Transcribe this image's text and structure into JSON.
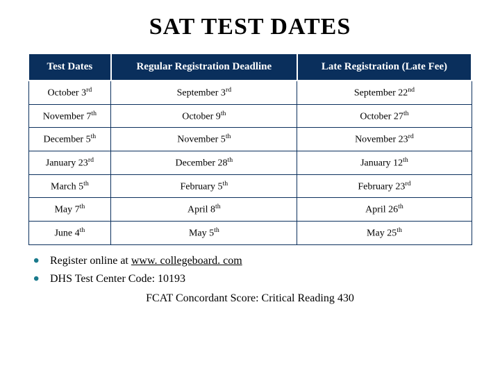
{
  "title": "SAT TEST DATES",
  "table": {
    "columns": [
      "Test Dates",
      "Regular Registration Deadline",
      "Late Registration (Late Fee)"
    ],
    "rows": [
      {
        "c0_text": "October 3",
        "c0_sup": "rd",
        "c1_text": "September 3",
        "c1_sup": "rd",
        "c2_text": "September 22",
        "c2_sup": "nd"
      },
      {
        "c0_text": "November 7",
        "c0_sup": "th",
        "c1_text": "October 9",
        "c1_sup": "th",
        "c2_text": "October 27",
        "c2_sup": "th"
      },
      {
        "c0_text": "December 5",
        "c0_sup": "th",
        "c1_text": "November 5",
        "c1_sup": "th",
        "c2_text": "November 23",
        "c2_sup": "rd"
      },
      {
        "c0_text": "January 23",
        "c0_sup": "rd",
        "c1_text": "December 28",
        "c1_sup": "th",
        "c2_text": "January 12",
        "c2_sup": "th"
      },
      {
        "c0_text": "March 5",
        "c0_sup": "th",
        "c1_text": "February 5",
        "c1_sup": "th",
        "c2_text": "February 23",
        "c2_sup": "rd"
      },
      {
        "c0_text": "May 7",
        "c0_sup": "th",
        "c1_text": "April 8",
        "c1_sup": "th",
        "c2_text": "April 26",
        "c2_sup": "th"
      },
      {
        "c0_text": "June 4",
        "c0_sup": "th",
        "c1_text": "May 5",
        "c1_sup": "th",
        "c2_text": "May 25",
        "c2_sup": "th"
      }
    ],
    "header_bg": "#0a2f5c",
    "header_color": "#ffffff",
    "cell_border": "#0a2f5c",
    "cell_bg": "#ffffff"
  },
  "bullets": {
    "b0_prefix": "Register online at ",
    "b0_link": "www. collegeboard. com",
    "b1": "DHS Test Center Code: 10193"
  },
  "footer": "FCAT Concordant Score: Critical Reading 430",
  "colors": {
    "bullet_accent": "#1a7a8c",
    "text": "#000000",
    "background": "#ffffff"
  }
}
